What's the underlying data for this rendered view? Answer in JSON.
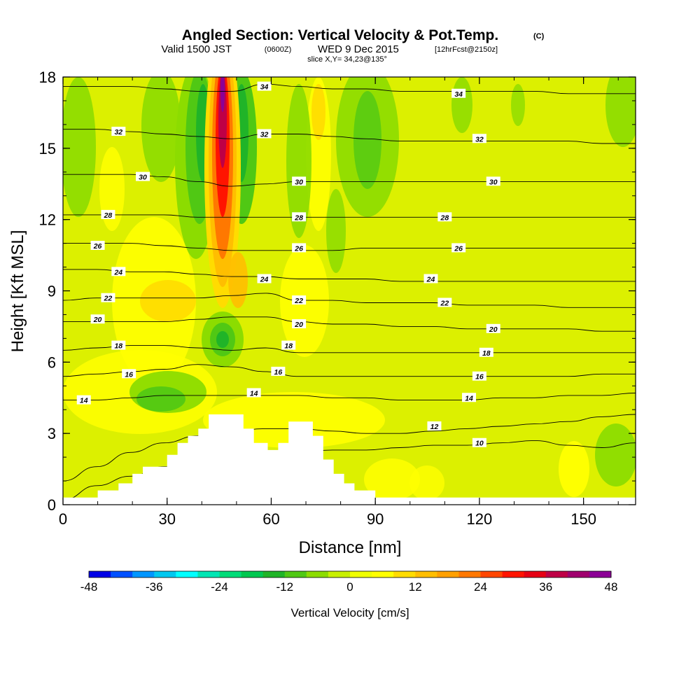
{
  "title": {
    "main": "Angled Section: Vertical Velocity & Pot.Temp.",
    "main_tag": "(C)",
    "valid_prefix": "Valid 1500 JST",
    "valid_utc": "(0600Z)",
    "valid_date": "WED 9 Dec 2015",
    "forecast": "[12hrFcst@2150z]",
    "slice": "slice X,Y= 34,23@135°"
  },
  "chart_data": {
    "type": "heatmap",
    "xlabel": "Distance [nm]",
    "ylabel": "Height [Kft MSL]",
    "xlim": [
      0,
      165
    ],
    "ylim": [
      0,
      18
    ],
    "x_ticks": [
      0,
      30,
      60,
      90,
      120,
      150
    ],
    "y_ticks": [
      0,
      3,
      6,
      9,
      12,
      15,
      18
    ],
    "colorbar": {
      "title": "Vertical Velocity [cm/s]",
      "min": -48,
      "max": 48,
      "step": 4,
      "tick_labels": [
        -48,
        -36,
        -24,
        -12,
        0,
        12,
        24,
        36,
        48
      ],
      "colors": [
        "#0000e6",
        "#0050ff",
        "#0096ff",
        "#00c8f0",
        "#00ffff",
        "#00e6b4",
        "#00dc78",
        "#00c850",
        "#20b428",
        "#50c814",
        "#8cdc00",
        "#c8f000",
        "#f0ff00",
        "#ffff00",
        "#ffdc00",
        "#ffbe00",
        "#ffa000",
        "#ff7800",
        "#ff4600",
        "#ff1400",
        "#e60014",
        "#be0046",
        "#a0006e",
        "#8c0096"
      ]
    },
    "terrain_heights_kft": [
      [
        0,
        0.3
      ],
      [
        10,
        0.3
      ],
      [
        10,
        0.6
      ],
      [
        16,
        0.6
      ],
      [
        16,
        0.9
      ],
      [
        20,
        0.9
      ],
      [
        20,
        1.3
      ],
      [
        23,
        1.3
      ],
      [
        23,
        1.6
      ],
      [
        30,
        1.6
      ],
      [
        30,
        2.1
      ],
      [
        33,
        2.1
      ],
      [
        33,
        2.6
      ],
      [
        36,
        2.6
      ],
      [
        36,
        2.9
      ],
      [
        39,
        2.9
      ],
      [
        39,
        3.2
      ],
      [
        42,
        3.2
      ],
      [
        42,
        3.8
      ],
      [
        52,
        3.8
      ],
      [
        52,
        3.2
      ],
      [
        55,
        3.2
      ],
      [
        55,
        2.6
      ],
      [
        59,
        2.6
      ],
      [
        59,
        2.3
      ],
      [
        62,
        2.3
      ],
      [
        62,
        2.6
      ],
      [
        65,
        2.6
      ],
      [
        65,
        3.5
      ],
      [
        72,
        3.5
      ],
      [
        72,
        2.9
      ],
      [
        75,
        2.9
      ],
      [
        75,
        1.9
      ],
      [
        78,
        1.9
      ],
      [
        78,
        1.3
      ],
      [
        81,
        1.3
      ],
      [
        81,
        0.9
      ],
      [
        84,
        0.9
      ],
      [
        84,
        0.6
      ],
      [
        90,
        0.6
      ],
      [
        90,
        0.3
      ],
      [
        165,
        0.3
      ]
    ],
    "theta_contours_C": [
      {
        "level": 10,
        "heights_kft": [
          0.2,
          0.8,
          1.2,
          1.6,
          1.8,
          2.0,
          2.1,
          2.2,
          2.3,
          2.3,
          2.4,
          2.5,
          2.5,
          2.6,
          2.7,
          2.5,
          2.4,
          2.6
        ]
      },
      {
        "level": 12,
        "heights_kft": [
          1.0,
          1.6,
          2.2,
          2.6,
          2.9,
          3.1,
          3.2,
          3.2,
          3.1,
          3.0,
          3.0,
          3.1,
          3.2,
          3.3,
          3.4,
          3.5,
          3.7,
          3.8
        ]
      },
      {
        "level": 14,
        "heights_kft": [
          4.4,
          4.4,
          4.5,
          4.6,
          4.6,
          4.6,
          4.6,
          4.6,
          4.5,
          4.5,
          4.4,
          4.4,
          4.4,
          4.5,
          4.5,
          4.6,
          4.6,
          4.7
        ]
      },
      {
        "level": 16,
        "heights_kft": [
          5.4,
          5.5,
          5.6,
          5.7,
          5.9,
          5.8,
          5.6,
          5.4,
          5.4,
          5.4,
          5.4,
          5.4,
          5.4,
          5.4,
          5.4,
          5.4,
          5.5,
          5.5
        ]
      },
      {
        "level": 18,
        "heights_kft": [
          6.5,
          6.6,
          6.7,
          6.7,
          6.6,
          6.5,
          6.6,
          6.4,
          6.4,
          6.4,
          6.4,
          6.4,
          6.4,
          6.4,
          6.4,
          6.4,
          6.4,
          6.4
        ]
      },
      {
        "level": 20,
        "heights_kft": [
          7.7,
          7.7,
          7.7,
          7.7,
          7.8,
          7.9,
          7.9,
          7.7,
          7.6,
          7.6,
          7.5,
          7.5,
          7.4,
          7.4,
          7.4,
          7.4,
          7.3,
          7.3
        ]
      },
      {
        "level": 22,
        "heights_kft": [
          8.6,
          8.7,
          8.7,
          8.7,
          8.7,
          8.8,
          8.9,
          8.6,
          8.6,
          8.5,
          8.5,
          8.5,
          8.4,
          8.4,
          8.4,
          8.3,
          8.3,
          8.3
        ]
      },
      {
        "level": 24,
        "heights_kft": [
          9.9,
          9.9,
          9.8,
          9.8,
          9.7,
          9.6,
          9.6,
          9.5,
          9.5,
          9.5,
          9.4,
          9.4,
          9.4,
          9.4,
          9.4,
          9.4,
          9.4,
          9.4
        ]
      },
      {
        "level": 26,
        "heights_kft": [
          11.0,
          11.0,
          11.0,
          10.9,
          10.8,
          10.7,
          10.7,
          10.7,
          10.7,
          10.8,
          10.8,
          10.8,
          10.8,
          10.8,
          10.8,
          10.8,
          10.8,
          10.8
        ]
      },
      {
        "level": 28,
        "heights_kft": [
          12.2,
          12.2,
          12.2,
          12.2,
          12.1,
          12.1,
          12.1,
          12.1,
          12.1,
          12.1,
          12.1,
          12.1,
          12.1,
          12.1,
          12.1,
          12.1,
          12.1,
          12.1
        ]
      },
      {
        "level": 30,
        "heights_kft": [
          13.9,
          13.9,
          13.9,
          13.8,
          13.6,
          13.4,
          13.5,
          13.6,
          13.6,
          13.6,
          13.6,
          13.6,
          13.6,
          13.6,
          13.6,
          13.6,
          13.6,
          13.6
        ]
      },
      {
        "level": 32,
        "heights_kft": [
          15.8,
          15.8,
          15.7,
          15.6,
          15.5,
          15.4,
          15.6,
          15.6,
          15.5,
          15.4,
          15.3,
          15.3,
          15.3,
          15.3,
          15.3,
          15.3,
          15.2,
          15.2
        ]
      },
      {
        "level": 34,
        "heights_kft": [
          17.6,
          17.6,
          17.6,
          17.5,
          17.4,
          17.4,
          17.7,
          17.6,
          17.5,
          17.5,
          17.4,
          17.4,
          17.4,
          17.4,
          17.4,
          17.3,
          17.3,
          17.3
        ]
      }
    ],
    "contour_labels": [
      {
        "text": "34",
        "x_nm": 58,
        "y_kft": 17.6
      },
      {
        "text": "34",
        "x_nm": 114,
        "y_kft": 17.3
      },
      {
        "text": "32",
        "x_nm": 16,
        "y_kft": 15.7
      },
      {
        "text": "32",
        "x_nm": 58,
        "y_kft": 15.6
      },
      {
        "text": "32",
        "x_nm": 120,
        "y_kft": 15.4
      },
      {
        "text": "30",
        "x_nm": 23,
        "y_kft": 13.8
      },
      {
        "text": "30",
        "x_nm": 68,
        "y_kft": 13.6
      },
      {
        "text": "30",
        "x_nm": 124,
        "y_kft": 13.6
      },
      {
        "text": "28",
        "x_nm": 13,
        "y_kft": 12.2
      },
      {
        "text": "28",
        "x_nm": 68,
        "y_kft": 12.1
      },
      {
        "text": "28",
        "x_nm": 110,
        "y_kft": 12.1
      },
      {
        "text": "26",
        "x_nm": 10,
        "y_kft": 10.9
      },
      {
        "text": "26",
        "x_nm": 68,
        "y_kft": 10.8
      },
      {
        "text": "26",
        "x_nm": 114,
        "y_kft": 10.8
      },
      {
        "text": "24",
        "x_nm": 16,
        "y_kft": 9.8
      },
      {
        "text": "24",
        "x_nm": 58,
        "y_kft": 9.5
      },
      {
        "text": "24",
        "x_nm": 106,
        "y_kft": 9.5
      },
      {
        "text": "22",
        "x_nm": 13,
        "y_kft": 8.7
      },
      {
        "text": "22",
        "x_nm": 68,
        "y_kft": 8.6
      },
      {
        "text": "22",
        "x_nm": 110,
        "y_kft": 8.5
      },
      {
        "text": "20",
        "x_nm": 10,
        "y_kft": 7.8
      },
      {
        "text": "20",
        "x_nm": 68,
        "y_kft": 7.6
      },
      {
        "text": "20",
        "x_nm": 124,
        "y_kft": 7.4
      },
      {
        "text": "18",
        "x_nm": 16,
        "y_kft": 6.7
      },
      {
        "text": "18",
        "x_nm": 65,
        "y_kft": 6.7
      },
      {
        "text": "18",
        "x_nm": 122,
        "y_kft": 6.4
      },
      {
        "text": "16",
        "x_nm": 19,
        "y_kft": 5.5
      },
      {
        "text": "16",
        "x_nm": 62,
        "y_kft": 5.6
      },
      {
        "text": "16",
        "x_nm": 120,
        "y_kft": 5.4
      },
      {
        "text": "14",
        "x_nm": 6,
        "y_kft": 4.4
      },
      {
        "text": "14",
        "x_nm": 55,
        "y_kft": 4.7
      },
      {
        "text": "14",
        "x_nm": 117,
        "y_kft": 4.5
      },
      {
        "text": "12",
        "x_nm": 107,
        "y_kft": 3.3
      },
      {
        "text": "10",
        "x_nm": 120,
        "y_kft": 2.6
      }
    ]
  }
}
